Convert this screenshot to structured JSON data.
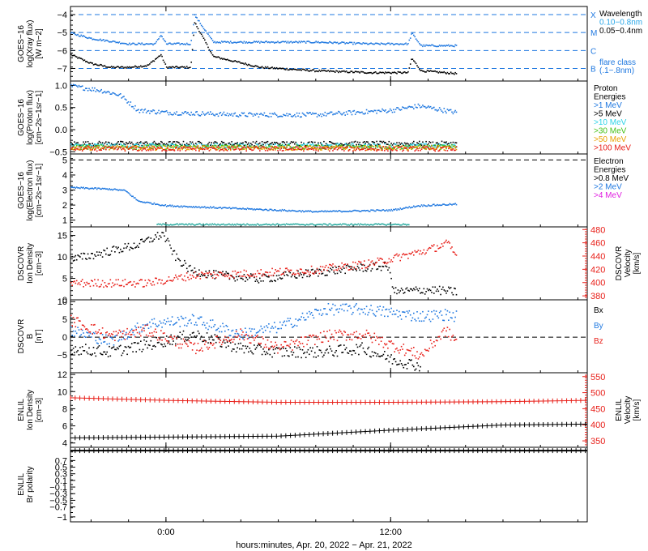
{
  "figure": {
    "xlabel": "hours:minutes, Apr. 20, 2022 − Apr. 21, 2022",
    "xticks": [
      "0:00",
      "12:00"
    ]
  },
  "chart_data": [
    {
      "type": "scatter",
      "id": "xray",
      "ylabel": [
        "GOES−16",
        "log(Xray flux)",
        "[W m−2]"
      ],
      "yticks": [
        -4,
        -5,
        -6,
        -7
      ],
      "ylim": [
        -7.7,
        -3.55
      ],
      "hlines": [
        -4,
        -5,
        -6,
        -7
      ],
      "right_labels": [
        {
          "text": "X",
          "color": "#1f78e0"
        },
        {
          "text": "M",
          "color": "#1f78e0"
        },
        {
          "text": "C",
          "color": "#1f78e0"
        },
        {
          "text": "B",
          "color": "#1f78e0"
        }
      ],
      "legend": [
        {
          "text": "Wavelength",
          "color": "#000000"
        },
        {
          "text": "0.10−0.8nm",
          "color": "#2aa7e8"
        },
        {
          "text": "0.05−0.4nm",
          "color": "#000000"
        },
        {
          "text": "flare class",
          "color": "#1f78e0"
        },
        {
          "text": "(.1−.8nm)",
          "color": "#1f78e0"
        }
      ],
      "series": [
        {
          "color": "#000000",
          "x": [
            -5.1,
            -4.0,
            -3.0,
            -2.0,
            -1.0,
            -0.3,
            0.0,
            1.3,
            1.5,
            2.5,
            5.0,
            8.0,
            11.0,
            12.9,
            13.1,
            13.6,
            15.5
          ],
          "y": [
            -6.2,
            -6.7,
            -6.9,
            -6.9,
            -6.8,
            -6.2,
            -6.9,
            -6.9,
            -4.4,
            -6.3,
            -6.9,
            -7.1,
            -7.2,
            -7.2,
            -6.4,
            -7.1,
            -7.25
          ]
        },
        {
          "color": "#1f78e0",
          "x": [
            -5.1,
            -4.0,
            -2.0,
            -0.6,
            -0.3,
            0.0,
            1.3,
            1.5,
            2.5,
            5.0,
            8.0,
            11.0,
            12.9,
            13.1,
            13.6,
            15.5
          ],
          "y": [
            -5.0,
            -5.3,
            -5.6,
            -5.6,
            -5.1,
            -5.6,
            -5.6,
            -4.0,
            -5.5,
            -5.5,
            -5.5,
            -5.6,
            -5.6,
            -5.0,
            -5.7,
            -5.7
          ]
        }
      ]
    },
    {
      "type": "scatter",
      "id": "protons",
      "ylabel": [
        "GOES−16",
        "log(Proton flux)",
        "[cm−2s−1sr−1]"
      ],
      "yticks": [
        1.0,
        0.5,
        0.0,
        -0.5
      ],
      "ylim": [
        -0.55,
        1.1
      ],
      "hlines": [],
      "legend": [
        {
          "text": "Proton",
          "color": "#000000"
        },
        {
          "text": "Energies",
          "color": "#000000"
        },
        {
          "text": ">1 MeV",
          "color": "#1f78e0"
        },
        {
          "text": ">5 MeV",
          "color": "#000000"
        },
        {
          "text": ">10 MeV",
          "color": "#2ed4e8"
        },
        {
          "text": ">30 MeV",
          "color": "#47c11a"
        },
        {
          "text": ">50 MeV",
          "color": "#e8a000"
        },
        {
          "text": ">100 MeV",
          "color": "#e8201a"
        }
      ],
      "series": [
        {
          "color": "#1f78e0",
          "x": [
            -5.1,
            -3.5,
            -2.5,
            -1.5,
            0.0,
            4.0,
            8.0,
            12.0,
            13.5,
            15.5
          ],
          "y": [
            1.0,
            0.9,
            0.8,
            0.45,
            0.4,
            0.35,
            0.35,
            0.45,
            0.55,
            0.4
          ]
        },
        {
          "color": "#000000",
          "x": [
            -5.1,
            15.5
          ],
          "y": [
            -0.3,
            -0.3
          ]
        },
        {
          "color": "#2ed4e8",
          "x": [
            -5.1,
            15.5
          ],
          "y": [
            -0.35,
            -0.35
          ]
        },
        {
          "color": "#47c11a",
          "x": [
            -5.1,
            15.5
          ],
          "y": [
            -0.38,
            -0.38
          ]
        },
        {
          "color": "#e8a000",
          "x": [
            -5.1,
            15.5
          ],
          "y": [
            -0.4,
            -0.4
          ]
        },
        {
          "color": "#e8201a",
          "x": [
            -5.1,
            15.5
          ],
          "y": [
            -0.42,
            -0.42
          ]
        }
      ]
    },
    {
      "type": "scatter",
      "id": "electrons",
      "ylabel": [
        "GOES−16",
        "log(Electron flux)",
        "[cm−2s−1sr−1]"
      ],
      "yticks": [
        5,
        4,
        3,
        2,
        1
      ],
      "ylim": [
        0.55,
        5.4
      ],
      "hlines": [
        5
      ],
      "legend": [
        {
          "text": "Electron",
          "color": "#000000"
        },
        {
          "text": "Energies",
          "color": "#000000"
        },
        {
          "text": ">0.8 MeV",
          "color": "#000000"
        },
        {
          "text": ">2 MeV",
          "color": "#1f78e0"
        },
        {
          "text": ">4 MeV",
          "color": "#e020e0"
        }
      ],
      "series": [
        {
          "color": "#1f78e0",
          "x": [
            -5.1,
            -3.0,
            -2.2,
            -1.5,
            0.0,
            4.0,
            8.0,
            12.0,
            13.5,
            15.5
          ],
          "y": [
            3.2,
            3.1,
            3.0,
            2.3,
            2.0,
            1.8,
            1.6,
            1.7,
            2.0,
            2.1
          ]
        },
        {
          "color": "#2aaba0",
          "x": [
            -0.5,
            13.0
          ],
          "y": [
            0.75,
            0.75
          ]
        }
      ]
    },
    {
      "type": "scatter",
      "id": "dscovr-plasma",
      "ylabel": [
        "DSCOVR",
        "Ion Density",
        "[cm−3]"
      ],
      "yticks": [
        15,
        10,
        5,
        0
      ],
      "ylim": [
        0,
        17
      ],
      "hlines": [],
      "right_axis": {
        "ylabel": [
          "DSCOVR",
          "Velocity",
          "[km/s]"
        ],
        "yticks": [
          480,
          460,
          440,
          420,
          400,
          380
        ],
        "ylim": [
          374,
          484
        ],
        "color": "#e8201a"
      },
      "series": [
        {
          "color": "#000000",
          "axis": "left",
          "x": [
            -5.1,
            -3.5,
            -1.5,
            -0.2,
            0.5,
            1.3,
            2.5,
            5.0,
            8.0,
            10.0,
            11.8,
            12.2,
            14.0,
            15.5
          ],
          "y": [
            9.5,
            11.0,
            13.0,
            15.5,
            10.0,
            7.0,
            6.0,
            5.0,
            6.5,
            7.5,
            8.0,
            2.0,
            2.5,
            2.0
          ]
        },
        {
          "color": "#e8201a",
          "axis": "right",
          "x": [
            -5.1,
            -1.0,
            1.5,
            4.0,
            8.0,
            11.0,
            12.5,
            14.0,
            15.0,
            15.5
          ],
          "y": [
            400,
            400,
            412,
            414,
            420,
            430,
            440,
            450,
            460,
            440
          ]
        }
      ]
    },
    {
      "type": "scatter",
      "id": "dscovr-mag",
      "ylabel": [
        "DSCOVR",
        "B",
        "[nT]"
      ],
      "yticks": [
        10,
        5,
        0,
        -5
      ],
      "ylim": [
        -10,
        10.5
      ],
      "hlines": [
        0
      ],
      "legend": [
        {
          "text": "Bx",
          "color": "#000000"
        },
        {
          "text": "By",
          "color": "#1f78e0"
        },
        {
          "text": "Bz",
          "color": "#e8201a"
        }
      ],
      "series": [
        {
          "color": "#000000",
          "x": [
            -5.1,
            -3.0,
            -1.0,
            1.5,
            4.0,
            6.0,
            8.5,
            10.5,
            12.0,
            13.6
          ],
          "y": [
            -3.0,
            -4.0,
            -2.0,
            1.0,
            -3.0,
            -4.0,
            -4.0,
            -3.0,
            -6.0,
            -8.0
          ]
        },
        {
          "color": "#1f78e0",
          "x": [
            -5.1,
            -3.0,
            -1.0,
            1.5,
            4.0,
            6.0,
            8.5,
            10.5,
            12.0,
            13.6,
            14.9,
            15.5
          ],
          "y": [
            2.0,
            -1.0,
            4.0,
            5.0,
            1.0,
            3.0,
            8.0,
            8.0,
            7.0,
            6.0,
            6.5,
            6.0
          ]
        },
        {
          "color": "#e8201a",
          "x": [
            -5.1,
            -3.0,
            -1.0,
            1.5,
            4.0,
            6.0,
            8.5,
            10.5,
            12.0,
            13.6,
            14.9,
            15.5
          ],
          "y": [
            5.0,
            0.5,
            2.0,
            -3.0,
            1.0,
            -3.0,
            0.5,
            1.0,
            -2.0,
            -5.0,
            2.0,
            -1.0
          ]
        }
      ]
    },
    {
      "type": "line",
      "id": "enlil-plasma",
      "ylabel": [
        "ENLIL",
        "Ion Density",
        "[cm−3]"
      ],
      "yticks": [
        12,
        10,
        8,
        6,
        4
      ],
      "ylim": [
        3.5,
        12.2
      ],
      "hlines": [],
      "right_axis": {
        "ylabel": [
          "ENLIL",
          "Velocity",
          "[km/s]"
        ],
        "yticks": [
          550,
          500,
          450,
          400,
          350
        ],
        "ylim": [
          330,
          562
        ],
        "color": "#e8201a"
      },
      "series": [
        {
          "color": "#000000",
          "axis": "left",
          "x": [
            -5.1,
            6.0,
            12.0,
            18.0,
            22.5
          ],
          "y": [
            4.6,
            4.8,
            5.5,
            6.1,
            6.2
          ]
        },
        {
          "color": "#e8201a",
          "axis": "right",
          "x": [
            -5.1,
            0.0,
            6.0,
            12.0,
            18.0,
            22.5
          ],
          "y": [
            484,
            476,
            470,
            470,
            472,
            476
          ]
        }
      ]
    },
    {
      "type": "line",
      "id": "enlil-polarity",
      "ylabel": [
        "ENLIL",
        "Br polarity"
      ],
      "yticks": [
        0.7,
        0.5,
        0.3,
        0.1,
        -0.1,
        -0.3,
        -0.5,
        -0.7,
        -1.0
      ],
      "ylim": [
        -1.15,
        1.1
      ],
      "hlines": [],
      "series": [
        {
          "color": "#000000",
          "x": [
            -5.1,
            22.5
          ],
          "y": [
            1.0,
            1.0
          ]
        }
      ]
    }
  ]
}
